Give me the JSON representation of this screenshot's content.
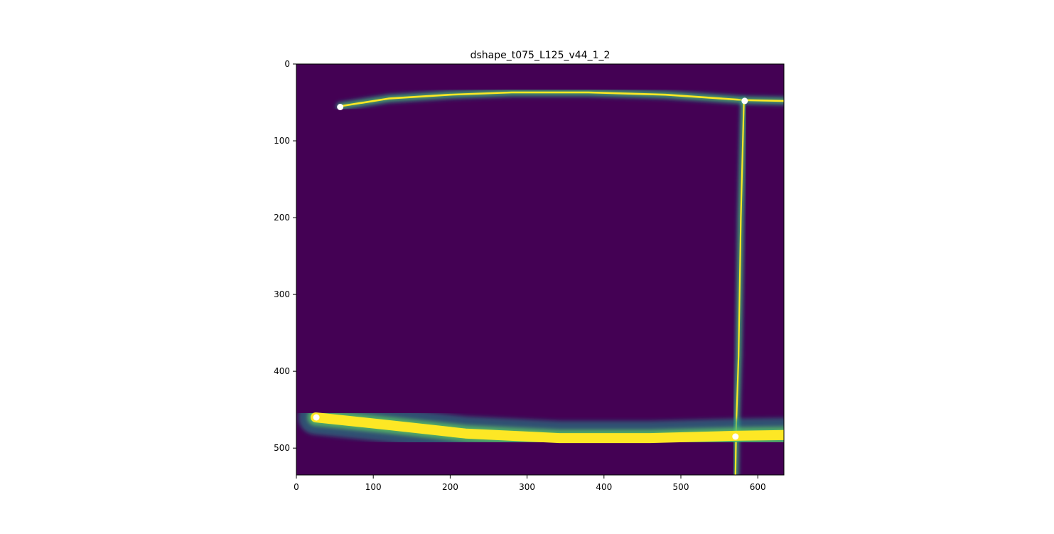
{
  "chart_data": {
    "type": "heatmap",
    "title": "dshape_t075_L125_v44_1_2",
    "xlabel": "",
    "ylabel": "",
    "xlim": [
      0,
      634
    ],
    "ylim": [
      535,
      0
    ],
    "x_ticks": [
      0,
      100,
      200,
      300,
      400,
      500,
      600
    ],
    "y_ticks": [
      0,
      100,
      200,
      300,
      400,
      500
    ],
    "colormap": "viridis",
    "background_color": "#440154",
    "streaks": [
      {
        "name": "top-streak",
        "points": [
          [
            57,
            55
          ],
          [
            120,
            45
          ],
          [
            200,
            40
          ],
          [
            280,
            37
          ],
          [
            380,
            37
          ],
          [
            480,
            40
          ],
          [
            583,
            47
          ],
          [
            634,
            48
          ]
        ],
        "glow_width": 6,
        "core_width": 2.4
      },
      {
        "name": "vertical-streak",
        "points": [
          [
            582,
            48
          ],
          [
            578,
            200
          ],
          [
            575,
            380
          ],
          [
            572,
            470
          ],
          [
            571,
            535
          ]
        ],
        "glow_width": 5,
        "core_width": 2
      },
      {
        "name": "bottom-streak",
        "points": [
          [
            25,
            460
          ],
          [
            120,
            470
          ],
          [
            220,
            481
          ],
          [
            342,
            487
          ],
          [
            460,
            487
          ],
          [
            570,
            484
          ],
          [
            634,
            483
          ]
        ],
        "glow_width": 19,
        "core_width": 13
      }
    ],
    "markers": [
      {
        "x": 57,
        "y": 56,
        "color": "#ffffff"
      },
      {
        "x": 583,
        "y": 48,
        "color": "#ffffff"
      },
      {
        "x": 26,
        "y": 460,
        "color": "#ffffff"
      },
      {
        "x": 571,
        "y": 485,
        "color": "#ffffff"
      }
    ],
    "colors": {
      "glow": "#21918c",
      "mid": "#5ec962",
      "core": "#fde725",
      "marker": "#ffffff"
    }
  }
}
